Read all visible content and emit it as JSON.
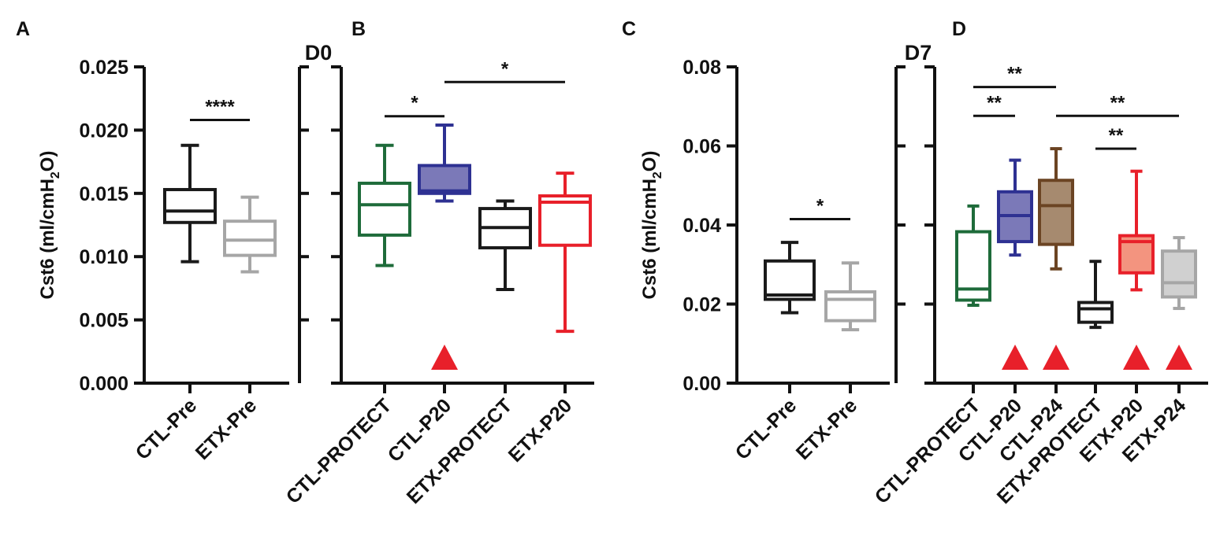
{
  "figure": {
    "left_label": "D0",
    "right_label": "D7"
  },
  "chart_data": [
    {
      "panel": "A",
      "type": "box",
      "ylabel_main": "Cst6 (ml/cmH",
      "ylabel_sub": "2",
      "ylabel_end": "O)",
      "ylim": [
        0,
        0.025
      ],
      "yticks": [
        "0.000",
        "0.005",
        "0.010",
        "0.015",
        "0.020",
        "0.025"
      ],
      "categories": [
        "CTL-Pre",
        "ETX-Pre"
      ],
      "series": [
        {
          "name": "CTL-Pre",
          "color": "#1a1a1a",
          "fill": "none",
          "min": 0.0096,
          "q1": 0.0127,
          "median": 0.0136,
          "q3": 0.0153,
          "max": 0.0188
        },
        {
          "name": "ETX-Pre",
          "color": "#a6a6a6",
          "fill": "none",
          "min": 0.0088,
          "q1": 0.0101,
          "median": 0.0113,
          "q3": 0.0128,
          "max": 0.0147
        }
      ],
      "significance": [
        {
          "from": 0,
          "to": 1,
          "y": 0.0208,
          "label": "****"
        }
      ]
    },
    {
      "panel": "B",
      "type": "box",
      "ylim": [
        0,
        0.025
      ],
      "categories": [
        "CTL-PROTECT",
        "CTL-P20",
        "ETX-PROTECT",
        "ETX-P20"
      ],
      "series": [
        {
          "name": "CTL-PROTECT",
          "color": "#1e6b3a",
          "fill": "none",
          "min": 0.0093,
          "q1": 0.0117,
          "median": 0.0141,
          "q3": 0.0158,
          "max": 0.0188
        },
        {
          "name": "CTL-P20",
          "color": "#2e3192",
          "fill": "#7b79b8",
          "min": 0.0144,
          "q1": 0.015,
          "median": 0.0152,
          "q3": 0.0172,
          "max": 0.0204
        },
        {
          "name": "ETX-PROTECT",
          "color": "#1a1a1a",
          "fill": "none",
          "min": 0.0074,
          "q1": 0.0107,
          "median": 0.0123,
          "q3": 0.0138,
          "max": 0.0144
        },
        {
          "name": "ETX-P20",
          "color": "#e8202a",
          "fill": "none",
          "min": 0.0041,
          "q1": 0.0109,
          "median": 0.0143,
          "q3": 0.0148,
          "max": 0.0166
        }
      ],
      "significance": [
        {
          "from": 0,
          "to": 1,
          "y": 0.0211,
          "label": "*"
        },
        {
          "from": 1,
          "to": 3,
          "y": 0.0238,
          "label": "*"
        }
      ],
      "markers": [
        1
      ]
    },
    {
      "panel": "C",
      "type": "box",
      "ylabel_main": "Cst6 (ml/cmH",
      "ylabel_sub": "2",
      "ylabel_end": "O)",
      "ylim": [
        0,
        0.08
      ],
      "yticks": [
        "0.00",
        "0.02",
        "0.04",
        "0.06",
        "0.08"
      ],
      "categories": [
        "CTL-Pre",
        "ETX-Pre"
      ],
      "series": [
        {
          "name": "CTL-Pre",
          "color": "#1a1a1a",
          "fill": "none",
          "min": 0.0178,
          "q1": 0.0212,
          "median": 0.0223,
          "q3": 0.0309,
          "max": 0.0356
        },
        {
          "name": "ETX-Pre",
          "color": "#a6a6a6",
          "fill": "none",
          "min": 0.0135,
          "q1": 0.0158,
          "median": 0.0212,
          "q3": 0.0231,
          "max": 0.0304
        }
      ],
      "significance": [
        {
          "from": 0,
          "to": 1,
          "y": 0.0415,
          "label": "*"
        }
      ]
    },
    {
      "panel": "D",
      "type": "box",
      "ylim": [
        0,
        0.08
      ],
      "categories": [
        "CTL-PROTECT",
        "CTL-P20",
        "CTL-P24",
        "ETX-PROTECT",
        "ETX-P20",
        "ETX-P24"
      ],
      "series": [
        {
          "name": "CTL-PROTECT",
          "color": "#1e6b3a",
          "fill": "none",
          "min": 0.0197,
          "q1": 0.021,
          "median": 0.0238,
          "q3": 0.0383,
          "max": 0.0448
        },
        {
          "name": "CTL-P20",
          "color": "#2e3192",
          "fill": "#7b79b8",
          "min": 0.0324,
          "q1": 0.0358,
          "median": 0.0424,
          "q3": 0.0484,
          "max": 0.0564
        },
        {
          "name": "CTL-P24",
          "color": "#6b4423",
          "fill": "#a68a6f",
          "min": 0.0289,
          "q1": 0.0351,
          "median": 0.0449,
          "q3": 0.0513,
          "max": 0.0593
        },
        {
          "name": "ETX-PROTECT",
          "color": "#1a1a1a",
          "fill": "none",
          "min": 0.0141,
          "q1": 0.0154,
          "median": 0.0188,
          "q3": 0.0204,
          "max": 0.0308
        },
        {
          "name": "ETX-P20",
          "color": "#e8202a",
          "fill": "#f3947f",
          "min": 0.0236,
          "q1": 0.0279,
          "median": 0.0358,
          "q3": 0.0373,
          "max": 0.0536
        },
        {
          "name": "ETX-P24",
          "color": "#a6a6a6",
          "fill": "#d0d0d0",
          "min": 0.0189,
          "q1": 0.0218,
          "median": 0.0254,
          "q3": 0.0334,
          "max": 0.0368
        }
      ],
      "significance": [
        {
          "from": 0,
          "to": 2,
          "y": 0.0749,
          "label": "**"
        },
        {
          "from": 0,
          "to": 1,
          "y": 0.0676,
          "label": "**"
        },
        {
          "from": 2,
          "to": 5,
          "y": 0.0676,
          "label": "**"
        },
        {
          "from": 3,
          "to": 4,
          "y": 0.0593,
          "label": "**"
        }
      ],
      "markers": [
        1,
        2,
        4,
        5
      ]
    }
  ]
}
